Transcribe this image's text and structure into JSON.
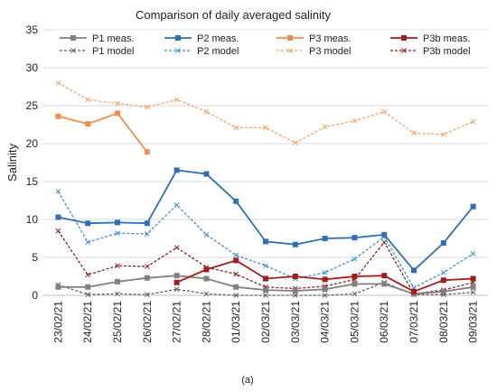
{
  "chart_data": {
    "type": "line",
    "title": "Comparison of daily averaged salinity",
    "xlabel": "",
    "ylabel": "Salinity",
    "ylim": [
      0,
      35
    ],
    "yticks": [
      0,
      5,
      10,
      15,
      20,
      25,
      30,
      35
    ],
    "grid": true,
    "legend_position": "top",
    "caption": "(a)",
    "categories": [
      "23/02/21",
      "24/02/21",
      "25/02/21",
      "26/02/21",
      "27/02/21",
      "28/02/21",
      "01/03/21",
      "02/03/21",
      "03/03/21",
      "04/03/21",
      "05/03/21",
      "06/03/21",
      "07/03/21",
      "08/03/21",
      "09/03/21"
    ],
    "series": [
      {
        "name": "P1 meas.",
        "color": "#808080",
        "style": "solid",
        "marker": "square",
        "values": [
          1.1,
          1.1,
          1.8,
          2.3,
          2.6,
          2.2,
          1.1,
          0.7,
          0.6,
          0.8,
          1.5,
          1.5,
          0.2,
          0.5,
          1.1
        ]
      },
      {
        "name": "P2 meas.",
        "color": "#2e6fba",
        "style": "solid",
        "marker": "square",
        "values": [
          10.3,
          9.5,
          9.6,
          9.5,
          16.5,
          16.0,
          12.4,
          7.1,
          6.7,
          7.5,
          7.6,
          8.0,
          3.3,
          6.9,
          11.7
        ]
      },
      {
        "name": "P3 meas.",
        "color": "#f28e4b",
        "style": "solid",
        "marker": "square",
        "values": [
          23.6,
          22.6,
          24.0,
          18.9,
          null,
          null,
          null,
          null,
          null,
          null,
          null,
          null,
          null,
          null,
          null
        ]
      },
      {
        "name": "P3b meas.",
        "color": "#a51c1c",
        "style": "solid",
        "marker": "square",
        "values": [
          null,
          null,
          null,
          null,
          1.7,
          3.4,
          4.6,
          2.2,
          2.5,
          2.1,
          2.5,
          2.6,
          0.5,
          2.0,
          2.2
        ]
      },
      {
        "name": "P1 model",
        "color": "#606060",
        "style": "dashed",
        "marker": "x",
        "values": [
          1.4,
          0.1,
          0.2,
          0.1,
          0.8,
          0.2,
          0.0,
          0.0,
          0.0,
          0.0,
          0.2,
          1.7,
          0.1,
          0.1,
          0.4
        ]
      },
      {
        "name": "P2 model",
        "color": "#3b8fd9",
        "style": "dashed",
        "marker": "x",
        "values": [
          13.7,
          7.0,
          8.2,
          8.1,
          11.9,
          8.0,
          5.3,
          3.9,
          2.2,
          3.0,
          4.8,
          7.7,
          1.0,
          3.0,
          5.5
        ]
      },
      {
        "name": "P3 model",
        "color": "#f5a36b",
        "style": "dashed",
        "marker": "x",
        "values": [
          28.0,
          25.8,
          25.3,
          24.8,
          25.8,
          24.2,
          22.1,
          22.1,
          20.1,
          22.2,
          23.0,
          24.2,
          21.4,
          21.2,
          22.9
        ]
      },
      {
        "name": "P3b model",
        "color": "#8b2020",
        "style": "dashed",
        "marker": "x",
        "values": [
          8.5,
          2.7,
          3.9,
          3.8,
          6.3,
          3.7,
          2.8,
          1.1,
          0.9,
          1.2,
          2.1,
          7.0,
          0.2,
          0.7,
          1.7
        ]
      }
    ]
  }
}
